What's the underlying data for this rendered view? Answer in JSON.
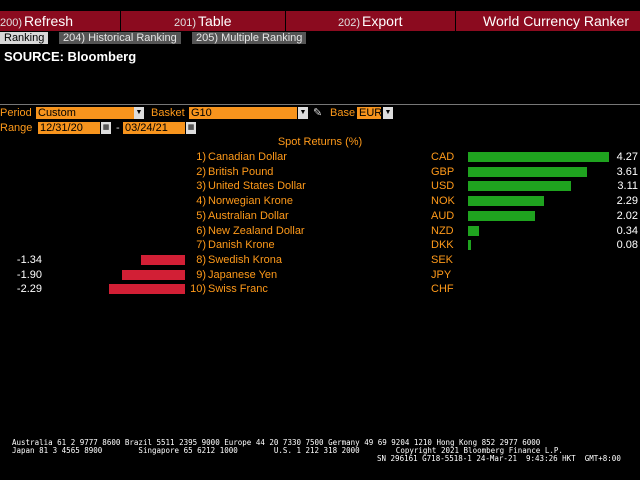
{
  "toolbar": {
    "refresh": {
      "num": "200)",
      "label": "Refresh"
    },
    "table": {
      "num": "201)",
      "label": "Table"
    },
    "export": {
      "num": "202)",
      "label": "Export"
    },
    "app_title": "World Currency Ranker"
  },
  "tabs": [
    {
      "label": "Ranking"
    },
    {
      "label": "204) Historical Ranking"
    },
    {
      "label": "205) Multiple Ranking"
    }
  ],
  "source": "SOURCE: Bloomberg",
  "controls": {
    "period_label": "Period",
    "period_value": "Custom",
    "basket_label": "Basket",
    "basket_value": "G10",
    "base_label": "Base",
    "base_value": "EUR",
    "range_label": "Range",
    "range_start": "12/31/20",
    "range_sep": "-",
    "range_end": "03/24/21"
  },
  "table_title": "Spot Returns (%)",
  "rows": [
    {
      "rank": "1)",
      "name": "Canadian Dollar",
      "code": "CAD",
      "value": "4.27",
      "num": 4.27
    },
    {
      "rank": "2)",
      "name": "British Pound",
      "code": "GBP",
      "value": "3.61",
      "num": 3.61
    },
    {
      "rank": "3)",
      "name": "United States Dollar",
      "code": "USD",
      "value": "3.11",
      "num": 3.11
    },
    {
      "rank": "4)",
      "name": "Norwegian Krone",
      "code": "NOK",
      "value": "2.29",
      "num": 2.29
    },
    {
      "rank": "5)",
      "name": "Australian Dollar",
      "code": "AUD",
      "value": "2.02",
      "num": 2.02
    },
    {
      "rank": "6)",
      "name": "New Zealand Dollar",
      "code": "NZD",
      "value": "0.34",
      "num": 0.34
    },
    {
      "rank": "7)",
      "name": "Danish Krone",
      "code": "DKK",
      "value": "0.08",
      "num": 0.08
    },
    {
      "rank": "8)",
      "name": "Swedish Krona",
      "code": "SEK",
      "value": "-1.34",
      "num": -1.34
    },
    {
      "rank": "9)",
      "name": "Japanese Yen",
      "code": "JPY",
      "value": "-1.90",
      "num": -1.9
    },
    {
      "rank": "10)",
      "name": "Swiss Franc",
      "code": "CHF",
      "value": "-2.29",
      "num": -2.29
    }
  ],
  "colors": {
    "positive": "#1fa31f",
    "negative": "#d21f35",
    "accent": "#f7941d",
    "toolbar": "#8b0b1f"
  },
  "footer": {
    "line1": "Australia 61 2 9777 8600 Brazil 5511 2395 9000 Europe 44 20 7330 7500 Germany 49 69 9204 1210 Hong Kong 852 2977 6000",
    "line2": "Japan 81 3 4565 8900        Singapore 65 6212 1000        U.S. 1 212 318 2000        Copyright 2021 Bloomberg Finance L.P.",
    "line3": "SN 296161 G718-5518-1 24-Mar-21  9:43:26 HKT  GMT+8:00"
  }
}
